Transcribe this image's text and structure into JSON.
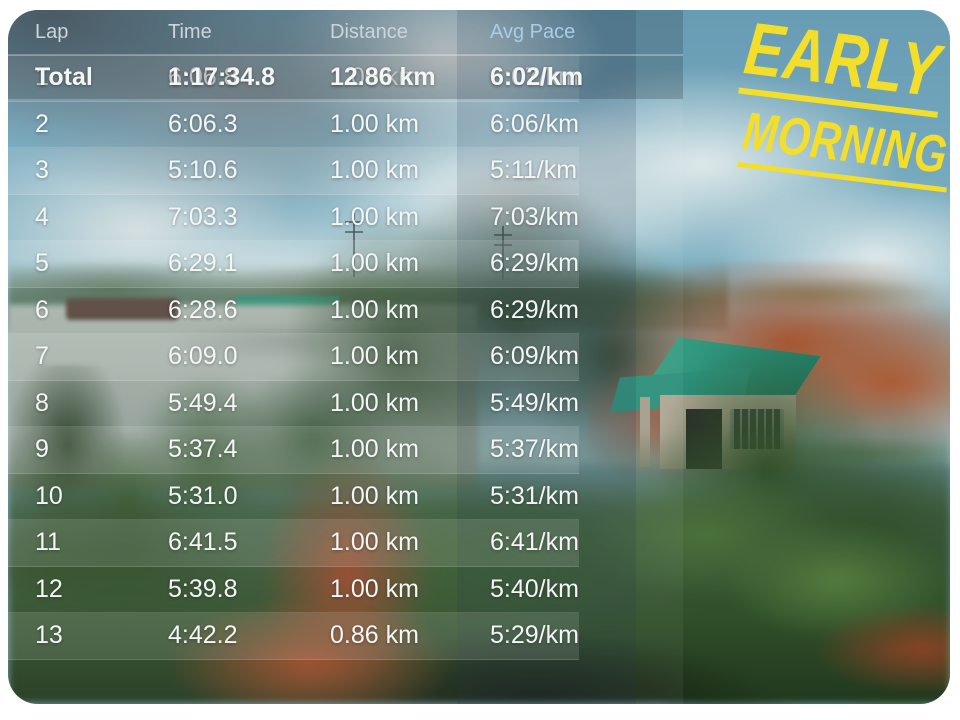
{
  "stamp": {
    "line1": "EARLY",
    "line2": "MORNING"
  },
  "lap_table": {
    "columns": [
      {
        "key": "lap",
        "label": "Lap"
      },
      {
        "key": "time",
        "label": "Time"
      },
      {
        "key": "distance",
        "label": "Distance"
      },
      {
        "key": "pace",
        "label": "Avg Pace"
      }
    ],
    "highlighted_column": "Avg Pace",
    "rows": [
      {
        "lap": "1",
        "time": "6:06.8",
        "distance": "1.00 km",
        "pace": "6:07/km"
      },
      {
        "lap": "2",
        "time": "6:06.3",
        "distance": "1.00 km",
        "pace": "6:06/km"
      },
      {
        "lap": "3",
        "time": "5:10.6",
        "distance": "1.00 km",
        "pace": "5:11/km"
      },
      {
        "lap": "4",
        "time": "7:03.3",
        "distance": "1.00 km",
        "pace": "7:03/km"
      },
      {
        "lap": "5",
        "time": "6:29.1",
        "distance": "1.00 km",
        "pace": "6:29/km"
      },
      {
        "lap": "6",
        "time": "6:28.6",
        "distance": "1.00 km",
        "pace": "6:29/km"
      },
      {
        "lap": "7",
        "time": "6:09.0",
        "distance": "1.00 km",
        "pace": "6:09/km"
      },
      {
        "lap": "8",
        "time": "5:49.4",
        "distance": "1.00 km",
        "pace": "5:49/km"
      },
      {
        "lap": "9",
        "time": "5:37.4",
        "distance": "1.00 km",
        "pace": "5:37/km"
      },
      {
        "lap": "10",
        "time": "5:31.0",
        "distance": "1.00 km",
        "pace": "5:31/km"
      },
      {
        "lap": "11",
        "time": "6:41.5",
        "distance": "1.00 km",
        "pace": "6:41/km"
      },
      {
        "lap": "12",
        "time": "5:39.8",
        "distance": "1.00 km",
        "pace": "5:40/km"
      },
      {
        "lap": "13",
        "time": "4:42.2",
        "distance": "0.86 km",
        "pace": "5:29/km"
      }
    ],
    "total": {
      "lap": "Total",
      "time": "1:17:34.8",
      "distance": "12.86 km",
      "pace": "6:02/km"
    }
  },
  "colors": {
    "stamp_yellow": "#f3df2b",
    "header_text": "#ccd5db",
    "pace_header_text": "#a9cde8",
    "row_text": "#f4f6f6"
  }
}
